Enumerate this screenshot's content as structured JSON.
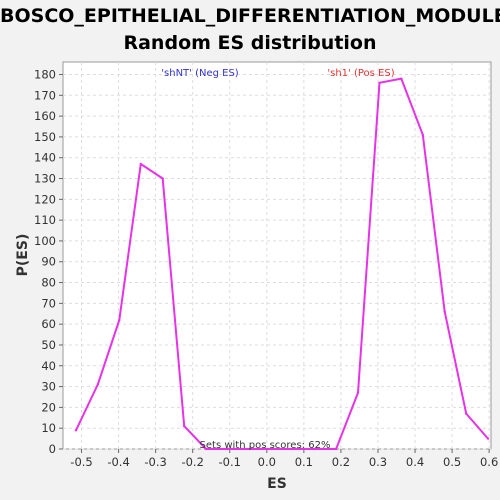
{
  "chart_data": {
    "type": "line",
    "title_line1": "BOSCO_EPITHELIAL_DIFFERENTIATION_MODULE:",
    "title_line2": "Random ES distribution",
    "xlabel": "ES",
    "ylabel": "P(ES)",
    "xlim": [
      -0.55,
      0.605
    ],
    "ylim": [
      0,
      186
    ],
    "x_ticks": [
      -0.5,
      -0.4,
      -0.3,
      -0.2,
      -0.1,
      0.0,
      0.1,
      0.2,
      0.3,
      0.4,
      0.5,
      0.6
    ],
    "x_tick_labels": [
      "-0.5",
      "-0.4",
      "-0.3",
      "-0.2",
      "-0.1",
      "0.0",
      "0.1",
      "0.2",
      "0.3",
      "0.4",
      "0.5",
      "0.6"
    ],
    "y_ticks": [
      0,
      10,
      20,
      30,
      40,
      50,
      60,
      70,
      80,
      90,
      100,
      110,
      120,
      130,
      140,
      150,
      160,
      170,
      180
    ],
    "grid": true,
    "series": [
      {
        "color": "#e633e6",
        "x": [
          -0.515,
          -0.456,
          -0.398,
          -0.34,
          -0.281,
          -0.223,
          -0.164,
          -0.106,
          -0.047,
          0.012,
          0.07,
          0.129,
          0.187,
          0.246,
          0.304,
          0.363,
          0.421,
          0.48,
          0.538,
          0.597
        ],
        "y": [
          9,
          31,
          62,
          137,
          130,
          11,
          0,
          0,
          0,
          0,
          0,
          0,
          0,
          27,
          176,
          178,
          151,
          66,
          17,
          5
        ]
      }
    ],
    "annotations": {
      "neg_label": "'shNT' (Neg ES)",
      "neg_color": "#3333cc",
      "pos_label": "'sh1' (Pos ES)",
      "pos_color": "#e63333",
      "footer": "Sets with pos scores: 62%"
    }
  }
}
